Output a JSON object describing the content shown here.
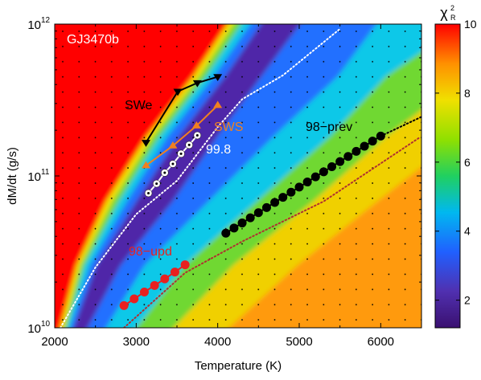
{
  "chart_data": {
    "type": "scatter",
    "title": "GJ3470b",
    "x_label": "Temperature (K)",
    "y_label": "dM/dt (g/s)",
    "xlim": [
      2000,
      6500
    ],
    "xticks": [
      2000,
      3000,
      4000,
      5000,
      6000
    ],
    "ylim": [
      10000000000,
      1000000000000
    ],
    "yscale": "log",
    "yticks": [
      {
        "value": 10000000000,
        "label": "10",
        "exponent": "10"
      },
      {
        "value": 100000000000,
        "label": "10",
        "exponent": "11"
      },
      {
        "value": 1000000000000,
        "label": "10",
        "exponent": "12"
      }
    ],
    "colorbar": {
      "symbol": "χ",
      "sup": "2",
      "sub": "R",
      "clim": [
        1.2,
        10
      ],
      "ticks": [
        2,
        4,
        6,
        8,
        10
      ]
    },
    "series": [
      {
        "name": "SWe",
        "color": "#000000",
        "marker": "triangle-down",
        "x": [
          3120,
          3510,
          3750,
          4000
        ],
        "values": [
          166000000000.0,
          360000000000.0,
          410000000000.0,
          450000000000.0
        ]
      },
      {
        "name": "SWS",
        "color": "#f08020",
        "marker": "triangle-up",
        "x": [
          3120,
          3450,
          3740,
          4000
        ],
        "values": [
          117000000000.0,
          158000000000.0,
          214000000000.0,
          292000000000.0
        ]
      },
      {
        "name": "99.8",
        "color": "#ffffff",
        "marker": "circle-dot",
        "x": [
          3150,
          3250,
          3350,
          3450,
          3550,
          3650,
          3750
        ],
        "values": [
          77000000000.0,
          89000000000.0,
          105000000000.0,
          120000000000.0,
          140000000000.0,
          160000000000.0,
          185000000000.0
        ]
      },
      {
        "name": "98−prev",
        "color": "#000000",
        "marker": "circle",
        "x": [
          4100,
          4200,
          4300,
          4400,
          4500,
          4600,
          4700,
          4800,
          4900,
          5000,
          5100,
          5200,
          5300,
          5400,
          5500,
          5600,
          5700,
          5800,
          5900,
          6000
        ],
        "values": [
          42000000000.0,
          45400000000.0,
          49000000000.0,
          53000000000.0,
          57300000000.0,
          61900000000.0,
          66900000000.0,
          72300000000.0,
          78100000000.0,
          84400000000.0,
          91200000000.0,
          98600000000.0,
          106500000000.0,
          115100000000.0,
          124400000000.0,
          134400000000.0,
          145200000000.0,
          157000000000.0,
          169600000000.0,
          183000000000.0
        ]
      },
      {
        "name": "98−upd",
        "color": "#e82020",
        "marker": "circle",
        "x": [
          2850,
          2975,
          3100,
          3225,
          3350,
          3475,
          3600
        ],
        "values": [
          14000000000.0,
          15500000000.0,
          17200000000.0,
          19000000000.0,
          21000000000.0,
          23300000000.0,
          26000000000.0
        ]
      }
    ],
    "curves": [
      {
        "color": "#ffffff",
        "x": [
          2070,
          2500,
          3000,
          3500,
          4000,
          4300,
          4800,
          5500
        ],
        "values": [
          10000000000.0,
          25000000000.0,
          56000000000.0,
          93000000000.0,
          210000000000.0,
          320000000000.0,
          460000000000.0,
          930000000000.0
        ]
      },
      {
        "color": "#000000",
        "x": [
          6000,
          6500
        ],
        "values": [
          183000000000.0,
          245000000000.0
        ]
      },
      {
        "color": "#b03030",
        "x": [
          2850,
          3600,
          4300,
          5300,
          6470
        ],
        "values": [
          10000000000.0,
          23000000000.0,
          37000000000.0,
          68000000000.0,
          178000000000.0
        ]
      }
    ]
  }
}
